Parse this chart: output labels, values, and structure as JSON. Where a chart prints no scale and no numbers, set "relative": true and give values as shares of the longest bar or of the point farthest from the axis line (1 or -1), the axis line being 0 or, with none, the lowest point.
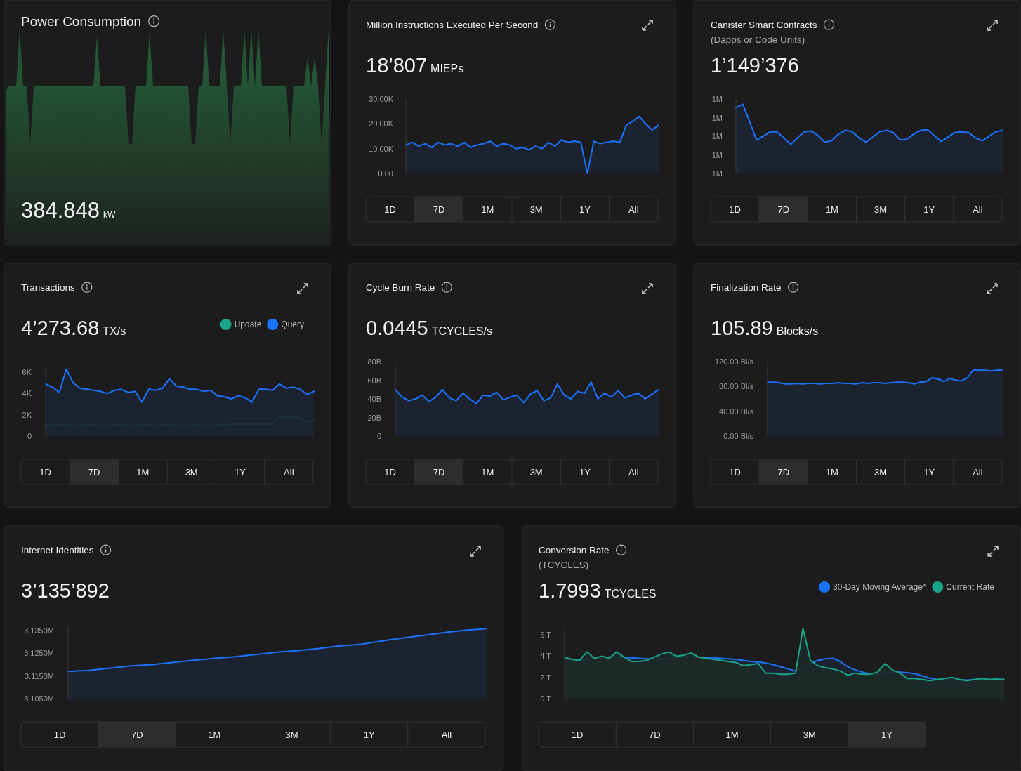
{
  "chart_data": [
    {
      "type": "area",
      "title": "Power Consumption",
      "relative": true,
      "color": "#245535",
      "annotations": [
        "384.848 kW"
      ],
      "categories": [
        null,
        null,
        null,
        null,
        null,
        null,
        null,
        null,
        null,
        null,
        null,
        null,
        null,
        null,
        null,
        null,
        null,
        null,
        null,
        null,
        null,
        null,
        null,
        null,
        null,
        null,
        null,
        null,
        null,
        null,
        null,
        null,
        null,
        null,
        null,
        null,
        null,
        null,
        null,
        null,
        null,
        null,
        null,
        null,
        null,
        null,
        null,
        null,
        null,
        null,
        null,
        null,
        null,
        null,
        null,
        null,
        null,
        null,
        null,
        null,
        null,
        null,
        null,
        null,
        null,
        null,
        null,
        null,
        null,
        null,
        null,
        null,
        null,
        null,
        null,
        null,
        null,
        null,
        null,
        null,
        null,
        null,
        null,
        null,
        null,
        null,
        null,
        null,
        null,
        null,
        null,
        null,
        null
      ],
      "values": [
        0.45,
        0.5,
        0.5,
        0.5,
        0.99,
        0.5,
        0.5,
        0,
        0.5,
        0.5,
        0.5,
        0.5,
        0.5,
        0.5,
        0.5,
        0.5,
        0.5,
        0.5,
        0.5,
        0.5,
        0.5,
        0.5,
        0.5,
        0.5,
        0.5,
        0.5,
        0.93,
        0.5,
        0.5,
        0.5,
        0.5,
        0.5,
        0.5,
        0.5,
        0.5,
        0,
        0,
        0.5,
        0.5,
        0.5,
        0.5,
        0.97,
        0.5,
        0.5,
        0.5,
        0.5,
        0.5,
        0.5,
        0.5,
        0.5,
        0.5,
        0.5,
        0.5,
        0,
        0,
        0.5,
        0.5,
        0.99,
        0.5,
        0.5,
        0.5,
        0.5,
        0.99,
        0.5,
        0,
        0.5,
        0.5,
        0.5,
        0.99,
        0.5,
        0.99,
        0.5,
        0.99,
        0.5,
        0.5,
        0.5,
        0.5,
        0.5,
        0.5,
        0.5,
        0.5,
        0,
        0.5,
        0.5,
        0.5,
        0.5,
        0.75,
        0.5,
        0.75,
        0.5,
        0,
        0.5,
        1
      ]
    },
    {
      "type": "area",
      "title": "Million Instructions Executed Per Second",
      "color": "#1a73ff",
      "tick_labels": "y",
      "annotations": [
        "18’807 MIEPs",
        "1D",
        "7D",
        "1M",
        "3M",
        "1Y",
        "All"
      ],
      "ylim": [
        0,
        30000
      ],
      "yticks": [
        {
          "value": 0,
          "label": "0.00"
        },
        {
          "value": 10000,
          "label": "10.00K"
        },
        {
          "value": 20000,
          "label": "20.00K"
        },
        {
          "value": 30000,
          "label": "30.00K"
        }
      ],
      "categories": [
        null,
        null,
        null,
        null,
        null,
        null,
        null,
        null,
        null,
        null,
        null,
        null,
        null,
        null,
        null,
        null,
        null,
        null,
        null,
        null,
        null,
        null,
        null,
        null,
        null,
        null,
        null,
        null,
        null,
        null,
        null,
        null,
        null,
        null,
        null,
        null,
        null,
        null,
        null,
        null
      ],
      "values": [
        11500,
        12500,
        11000,
        12000,
        10500,
        12500,
        11500,
        12000,
        11000,
        12500,
        10500,
        11500,
        12000,
        13000,
        11000,
        12000,
        11500,
        10000,
        10500,
        9500,
        11000,
        10000,
        12500,
        11000,
        13500,
        12500,
        13000,
        12500,
        0,
        13000,
        12000,
        12500,
        13000,
        12500,
        19500,
        21000,
        23000,
        20000,
        17500,
        19500
      ]
    },
    {
      "type": "area",
      "title": "Canister Smart Contracts",
      "subtitle": "(Dapps or Code Units)",
      "color": "#1a73ff",
      "tick_labels": "y",
      "annotations": [
        "1’149’376",
        "1D",
        "7D",
        "1M",
        "3M",
        "1Y",
        "All"
      ],
      "ylim": [
        1090000,
        1190000
      ],
      "yticks": [
        {
          "value": 1090000,
          "label": "1M"
        },
        {
          "value": 1115000,
          "label": "1M"
        },
        {
          "value": 1140000,
          "label": "1M"
        },
        {
          "value": 1165000,
          "label": "1M"
        },
        {
          "value": 1190000,
          "label": "1M"
        }
      ],
      "categories": [
        null,
        null,
        null,
        null,
        null,
        null,
        null,
        null,
        null,
        null,
        null,
        null,
        null,
        null,
        null,
        null,
        null,
        null,
        null,
        null,
        null,
        null,
        null,
        null,
        null,
        null,
        null,
        null,
        null,
        null,
        null,
        null,
        null,
        null,
        null,
        null,
        null,
        null,
        null,
        null
      ],
      "values": [
        1178000,
        1183000,
        1160000,
        1135000,
        1140000,
        1146000,
        1146000,
        1138000,
        1129000,
        1138000,
        1146000,
        1147000,
        1141000,
        1132000,
        1134000,
        1143000,
        1148000,
        1146000,
        1138000,
        1132000,
        1139000,
        1146000,
        1148000,
        1145000,
        1135000,
        1136000,
        1143000,
        1148000,
        1149000,
        1141000,
        1133000,
        1139000,
        1145000,
        1146000,
        1145000,
        1138000,
        1134000,
        1140000,
        1146000,
        1148000
      ]
    },
    {
      "type": "area",
      "title": "Transactions",
      "tick_labels": "y",
      "legend": "top right",
      "annotations": [
        "4’273.68 TX/s",
        "1D",
        "7D",
        "1M",
        "3M",
        "1Y",
        "All"
      ],
      "ylim": [
        0,
        6600
      ],
      "yticks": [
        0,
        {
          "value": 2000,
          "label": "2K"
        },
        {
          "value": 4000,
          "label": "4K"
        },
        {
          "value": 6000,
          "label": "6K"
        }
      ],
      "categories": [
        null,
        null,
        null,
        null,
        null,
        null,
        null,
        null,
        null,
        null,
        null,
        null,
        null,
        null,
        null,
        null,
        null,
        null,
        null,
        null,
        null,
        null,
        null,
        null,
        null,
        null,
        null,
        null,
        null,
        null,
        null,
        null,
        null,
        null,
        null,
        null,
        null,
        null,
        null,
        null
      ],
      "series": [
        {
          "name": "Update",
          "color": "#1aa58a",
          "values": [
            1000,
            1050,
            1000,
            1050,
            1000,
            1000,
            1050,
            1000,
            950,
            1000,
            1000,
            1050,
            1000,
            1000,
            1050,
            1000,
            1000,
            1000,
            1050,
            1000,
            1000,
            1000,
            1050,
            1000,
            950,
            1000,
            1050,
            1100,
            1100,
            1150,
            1100,
            1150,
            1100,
            1100,
            1800,
            1750,
            1800,
            1700,
            1300,
            1600
          ]
        },
        {
          "name": "Query",
          "color": "#1a73ff",
          "values": [
            4900,
            4600,
            4100,
            6300,
            5000,
            4500,
            4400,
            4300,
            4200,
            4000,
            4300,
            4400,
            4100,
            4200,
            3200,
            4400,
            4300,
            4500,
            5400,
            4700,
            4600,
            4400,
            4400,
            4200,
            4300,
            3800,
            3700,
            3500,
            3800,
            3600,
            3200,
            4400,
            4400,
            4300,
            4900,
            4500,
            4600,
            4400,
            3900,
            4200
          ]
        }
      ]
    },
    {
      "type": "area",
      "title": "Cycle Burn Rate",
      "color": "#1a73ff",
      "tick_labels": "y",
      "annotations": [
        "0.0445 TCYCLES/s",
        "1D",
        "7D",
        "1M",
        "3M",
        "1Y",
        "All"
      ],
      "ylim": [
        0,
        80000000000
      ],
      "yticks": [
        0,
        {
          "value": 20000000000,
          "label": "20B"
        },
        {
          "value": 40000000000,
          "label": "40B"
        },
        {
          "value": 60000000000,
          "label": "60B"
        },
        {
          "value": 80000000000,
          "label": "80B"
        }
      ],
      "categories": [
        null,
        null,
        null,
        null,
        null,
        null,
        null,
        null,
        null,
        null,
        null,
        null,
        null,
        null,
        null,
        null,
        null,
        null,
        null,
        null,
        null,
        null,
        null,
        null,
        null,
        null,
        null,
        null,
        null,
        null,
        null,
        null,
        null,
        null,
        null,
        null,
        null,
        null,
        null,
        null
      ],
      "values": [
        50000000000,
        42000000000,
        38000000000,
        40000000000,
        44000000000,
        37000000000,
        42000000000,
        50000000000,
        41000000000,
        38000000000,
        46000000000,
        40000000000,
        35000000000,
        44000000000,
        43000000000,
        47000000000,
        39000000000,
        42000000000,
        44000000000,
        36000000000,
        45000000000,
        49000000000,
        38000000000,
        41000000000,
        56000000000,
        44000000000,
        40000000000,
        48000000000,
        46000000000,
        58000000000,
        40000000000,
        46000000000,
        42000000000,
        49000000000,
        41000000000,
        44000000000,
        46000000000,
        40000000000,
        45000000000,
        50000000000
      ]
    },
    {
      "type": "area",
      "title": "Finalization Rate",
      "color": "#1a73ff",
      "tick_labels": "y",
      "annotations": [
        "105.89 Blocks/s",
        "1D",
        "7D",
        "1M",
        "3M",
        "1Y",
        "All"
      ],
      "ylim": [
        0,
        120
      ],
      "yticks": [
        {
          "value": 0,
          "label": "0.00 Bl/s"
        },
        {
          "value": 40,
          "label": "40.00 Bl/s"
        },
        {
          "value": 80,
          "label": "80.00 Bl/s"
        },
        {
          "value": 120,
          "label": "120.00 Bl/s"
        }
      ],
      "categories": [
        null,
        null,
        null,
        null,
        null,
        null,
        null,
        null,
        null,
        null,
        null,
        null,
        null,
        null,
        null,
        null,
        null,
        null,
        null,
        null,
        null,
        null,
        null,
        null,
        null,
        null,
        null,
        null,
        null,
        null,
        null,
        null,
        null,
        null,
        null,
        null,
        null,
        null,
        null,
        null,
        null
      ],
      "values": [
        87,
        87,
        86,
        84,
        84,
        85,
        84,
        85,
        85,
        84,
        85,
        85,
        86,
        85,
        85,
        84,
        86,
        85,
        86,
        86,
        85,
        86,
        87,
        87,
        86,
        84,
        87,
        88,
        94,
        92,
        88,
        93,
        90,
        89,
        94,
        107,
        106,
        106,
        105,
        106,
        107
      ]
    },
    {
      "type": "area",
      "title": "Internet Identities",
      "color": "#1a73ff",
      "tick_labels": "y",
      "annotations": [
        "3’135’892",
        "1D",
        "7D",
        "1M",
        "3M",
        "1Y",
        "All"
      ],
      "ylim": [
        3105000,
        3136000
      ],
      "yticks": [
        {
          "value": 3105000,
          "label": "3.1050M"
        },
        {
          "value": 3115000,
          "label": "3.1150M"
        },
        {
          "value": 3125000,
          "label": "3.1250M"
        },
        {
          "value": 3135000,
          "label": "3.1350M"
        }
      ],
      "categories": [
        null,
        null,
        null,
        null,
        null,
        null,
        null,
        null,
        null,
        null,
        null,
        null,
        null,
        null,
        null,
        null,
        null,
        null,
        null,
        null,
        null
      ],
      "values": [
        3117000,
        3117500,
        3118500,
        3119500,
        3120000,
        3121000,
        3122000,
        3122800,
        3123500,
        3124500,
        3125500,
        3126200,
        3127200,
        3128300,
        3129000,
        3130500,
        3131800,
        3133000,
        3134200,
        3135200,
        3135900
      ]
    },
    {
      "type": "area",
      "title": "Conversion Rate",
      "subtitle": "(TCYCLES)",
      "tick_labels": "y",
      "legend": "top right",
      "annotations": [
        "1.7993 TCYCLES",
        "1D",
        "7D",
        "1M",
        "3M",
        "1Y"
      ],
      "ylim": [
        0,
        6800000000000
      ],
      "yticks": [
        {
          "value": 0,
          "label": "0 T"
        },
        {
          "value": 2000000000000,
          "label": "2 T"
        },
        {
          "value": 4000000000000,
          "label": "4 T"
        },
        {
          "value": 6000000000000,
          "label": "6 T"
        }
      ],
      "categories": [
        null,
        null,
        null,
        null,
        null,
        null,
        null,
        null,
        null,
        null,
        null,
        null,
        null,
        null,
        null,
        null,
        null,
        null,
        null,
        null,
        null,
        null,
        null,
        null,
        null,
        null,
        null,
        null,
        null,
        null,
        null,
        null,
        null,
        null,
        null,
        null,
        null,
        null,
        null,
        null,
        null,
        null,
        null,
        null,
        null,
        null,
        null,
        null,
        null,
        null,
        null,
        null,
        null,
        null,
        null,
        null,
        null,
        null,
        null,
        null
      ],
      "series": [
        {
          "name": "30-Day Moving Average*",
          "color": "#1a73ff",
          "values": [
            3700000000000,
            3650000000000,
            3600000000000,
            3700000000000,
            3800000000000,
            3800000000000,
            3850000000000,
            3900000000000,
            3900000000000,
            3850000000000,
            3800000000000,
            3750000000000,
            3750000000000,
            3700000000000,
            3800000000000,
            3900000000000,
            3950000000000,
            3950000000000,
            3900000000000,
            3900000000000,
            3850000000000,
            3800000000000,
            3750000000000,
            3700000000000,
            3600000000000,
            3500000000000,
            3450000000000,
            3350000000000,
            3200000000000,
            3000000000000,
            2800000000000,
            2600000000000,
            2900000000000,
            3300000000000,
            3600000000000,
            3750000000000,
            3800000000000,
            3500000000000,
            3000000000000,
            2700000000000,
            2500000000000,
            2350000000000,
            2300000000000,
            2400000000000,
            2500000000000,
            2500000000000,
            2450000000000,
            2350000000000,
            2150000000000,
            1950000000000,
            1800000000000,
            1750000000000,
            1750000000000,
            1750000000000,
            1750000000000,
            1800000000000,
            1800000000000,
            1800000000000,
            1800000000000,
            1800000000000
          ]
        },
        {
          "name": "Current Rate",
          "color": "#1aa58a",
          "values": [
            3900000000000,
            3700000000000,
            3600000000000,
            4400000000000,
            3800000000000,
            4000000000000,
            3800000000000,
            4400000000000,
            3900000000000,
            3500000000000,
            3500000000000,
            3600000000000,
            3900000000000,
            4200000000000,
            4400000000000,
            4000000000000,
            4100000000000,
            4300000000000,
            3900000000000,
            3800000000000,
            3700000000000,
            3600000000000,
            3500000000000,
            3400000000000,
            3100000000000,
            3200000000000,
            3300000000000,
            2400000000000,
            2400000000000,
            2300000000000,
            2300000000000,
            2400000000000,
            6600000000000,
            3600000000000,
            3100000000000,
            2900000000000,
            2800000000000,
            2600000000000,
            2200000000000,
            2400000000000,
            2300000000000,
            2300000000000,
            2500000000000,
            3300000000000,
            2700000000000,
            2400000000000,
            1900000000000,
            1900000000000,
            1800000000000,
            1700000000000,
            1800000000000,
            1900000000000,
            2000000000000,
            1800000000000,
            1700000000000,
            1800000000000,
            1900000000000,
            1800000000000,
            1850000000000,
            1800000000000
          ]
        }
      ]
    }
  ]
}
